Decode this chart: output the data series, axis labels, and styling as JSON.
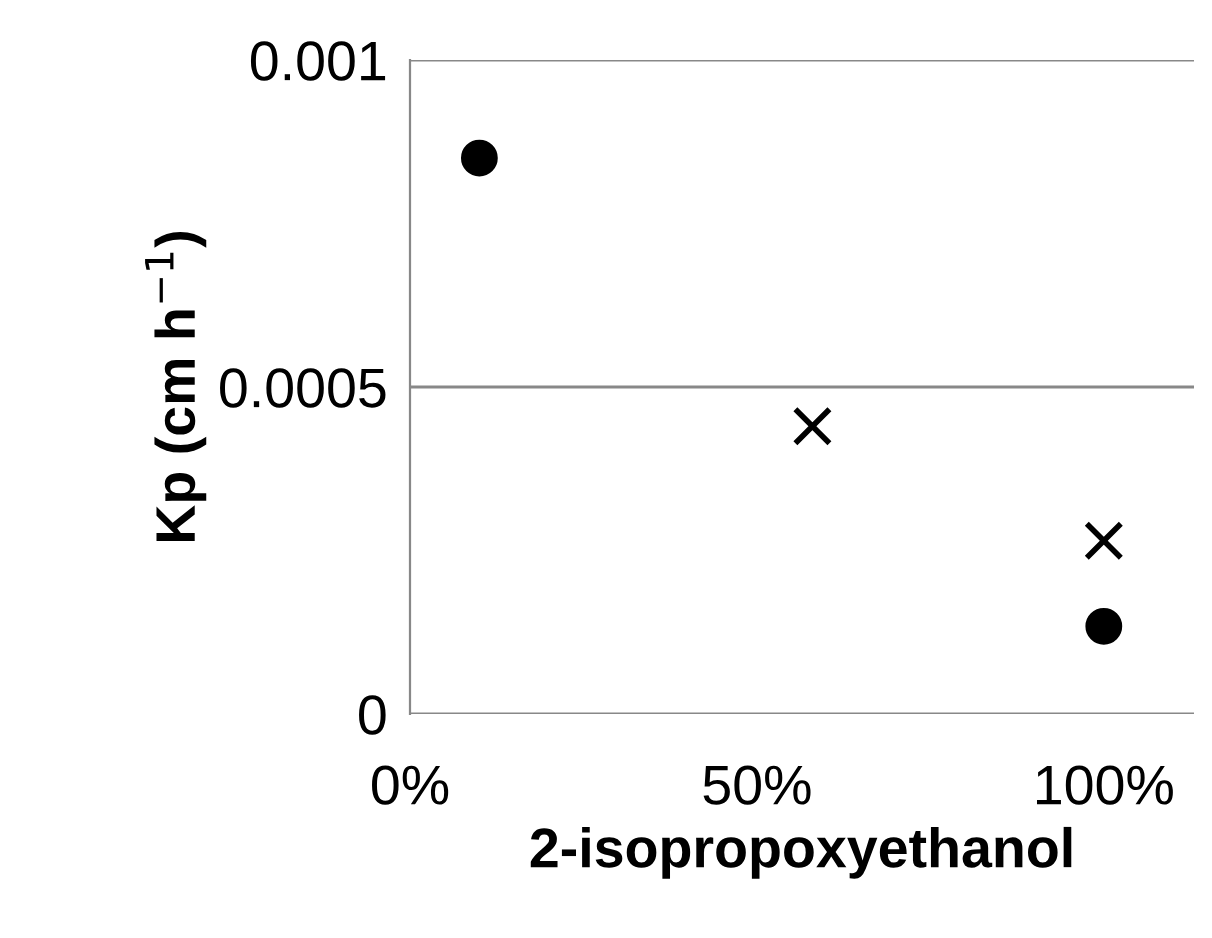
{
  "chart_data": {
    "type": "scatter",
    "xlabel": "2-isopropoxyethanol",
    "ylabel": "Kp (cm h$^{−1}$)",
    "series": [
      {
        "marker": "circle",
        "color": "#000000",
        "x": [
          10,
          100
        ],
        "values": [
          0.00085,
          0.000134
        ]
      },
      {
        "marker": "cross",
        "color": "#000000",
        "x": [
          58,
          100
        ],
        "values": [
          0.00044,
          0.000265
        ]
      }
    ],
    "xlim": [
      0,
      113
    ],
    "xticks": [
      {
        "value": 0,
        "label": "0%"
      },
      {
        "value": 50,
        "label": "50%"
      },
      {
        "value": 100,
        "label": "100%"
      }
    ],
    "ylim": [
      0,
      0.001
    ],
    "yticks": [
      {
        "value": 0,
        "label": "0"
      },
      {
        "value": 0.0005,
        "label": "0.0005"
      },
      {
        "value": 0.001,
        "label": "0.001"
      }
    ],
    "grid": "y"
  }
}
